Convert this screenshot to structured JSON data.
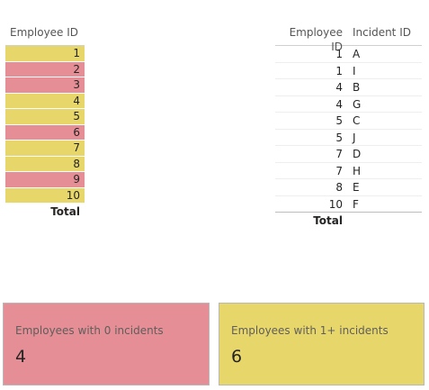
{
  "colors": {
    "yellow": "#e7d76b",
    "pink": "#e58e96"
  },
  "left_table": {
    "header": "Employee ID",
    "rows": [
      {
        "id": "1",
        "color": "yellow"
      },
      {
        "id": "2",
        "color": "pink"
      },
      {
        "id": "3",
        "color": "pink"
      },
      {
        "id": "4",
        "color": "yellow"
      },
      {
        "id": "5",
        "color": "yellow"
      },
      {
        "id": "6",
        "color": "pink"
      },
      {
        "id": "7",
        "color": "yellow"
      },
      {
        "id": "8",
        "color": "yellow"
      },
      {
        "id": "9",
        "color": "pink"
      },
      {
        "id": "10",
        "color": "yellow"
      }
    ],
    "total_label": "Total"
  },
  "right_table": {
    "headers": [
      "Employee ID",
      "Incident ID"
    ],
    "rows": [
      [
        "1",
        "A"
      ],
      [
        "1",
        "I"
      ],
      [
        "4",
        "B"
      ],
      [
        "4",
        "G"
      ],
      [
        "5",
        "C"
      ],
      [
        "5",
        "J"
      ],
      [
        "7",
        "D"
      ],
      [
        "7",
        "H"
      ],
      [
        "8",
        "E"
      ],
      [
        "10",
        "F"
      ]
    ],
    "total_label": "Total"
  },
  "cards": [
    {
      "label": "Employees with 0 incidents",
      "value": "4",
      "color": "pink"
    },
    {
      "label": "Employees with 1+ incidents",
      "value": "6",
      "color": "yellow"
    }
  ]
}
